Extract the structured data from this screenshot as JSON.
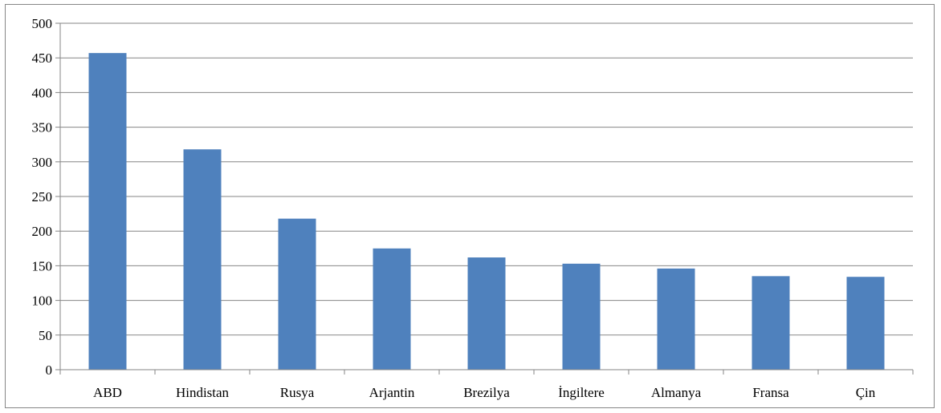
{
  "chart_data": {
    "type": "bar",
    "title": "",
    "xlabel": "",
    "ylabel": "",
    "categories": [
      "ABD",
      "Hindistan",
      "Rusya",
      "Arjantin",
      "Brezilya",
      "İngiltere",
      "Almanya",
      "Fransa",
      "Çin"
    ],
    "values": [
      457,
      318,
      218,
      175,
      162,
      153,
      146,
      135,
      134
    ],
    "ylim": [
      0,
      500
    ],
    "yticks": [
      0,
      50,
      100,
      150,
      200,
      250,
      300,
      350,
      400,
      450,
      500
    ],
    "grid": true,
    "legend": "none",
    "colors": {
      "bar": "#4F81BD",
      "grid": "#868686",
      "axis": "#868686"
    }
  }
}
